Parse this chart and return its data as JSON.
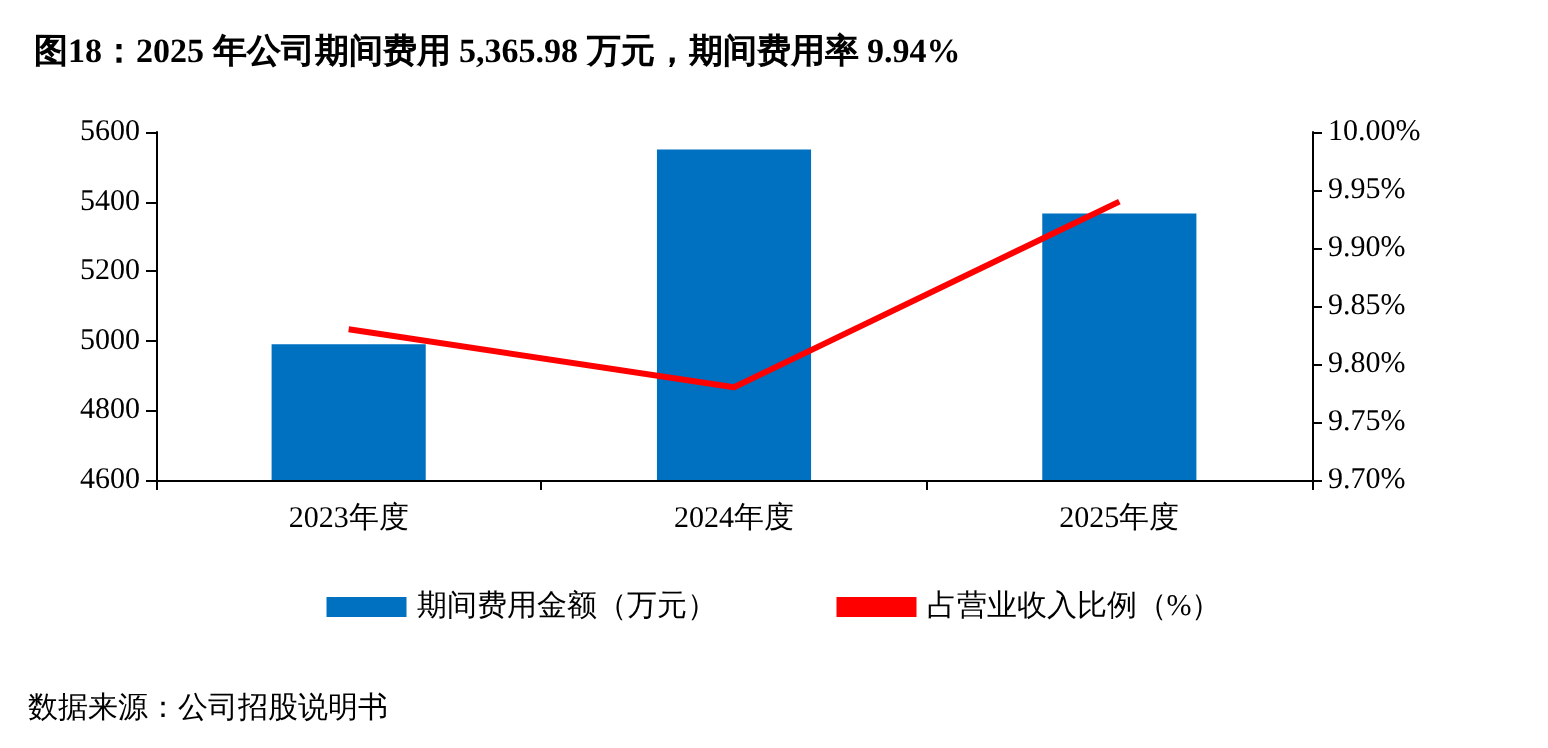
{
  "chart_data": {
    "type": "bar",
    "title": "图18：2025 年公司期间费用 5,365.98 万元，期间费用率 9.94%",
    "categories": [
      "2023年度",
      "2024年度",
      "2025年度"
    ],
    "series": [
      {
        "name": "期间费用金额（万元）",
        "color": "#0070c0",
        "values": [
          4990,
          5550,
          5366
        ]
      },
      {
        "name": "占营业收入比例（%）",
        "type": "line",
        "axis": "y2",
        "color": "#ff0000",
        "values": [
          9.83,
          9.78,
          9.94
        ]
      }
    ],
    "ylim": [
      4600,
      5600
    ],
    "yticks": [
      4600,
      4800,
      5000,
      5200,
      5400,
      5600
    ],
    "y2lim": [
      9.7,
      10.0
    ],
    "y2ticks": [
      {
        "value": 9.7,
        "label": "9.70%"
      },
      {
        "value": 9.75,
        "label": "9.75%"
      },
      {
        "value": 9.8,
        "label": "9.80%"
      },
      {
        "value": 9.85,
        "label": "9.85%"
      },
      {
        "value": 9.9,
        "label": "9.90%"
      },
      {
        "value": 9.95,
        "label": "9.95%"
      },
      {
        "value": 10.0,
        "label": "10.00%"
      }
    ],
    "grid": false,
    "legend": "bottom",
    "marker": "none",
    "line_style": "solid",
    "annotations": [
      "数据来源：公司招股说明书"
    ]
  }
}
